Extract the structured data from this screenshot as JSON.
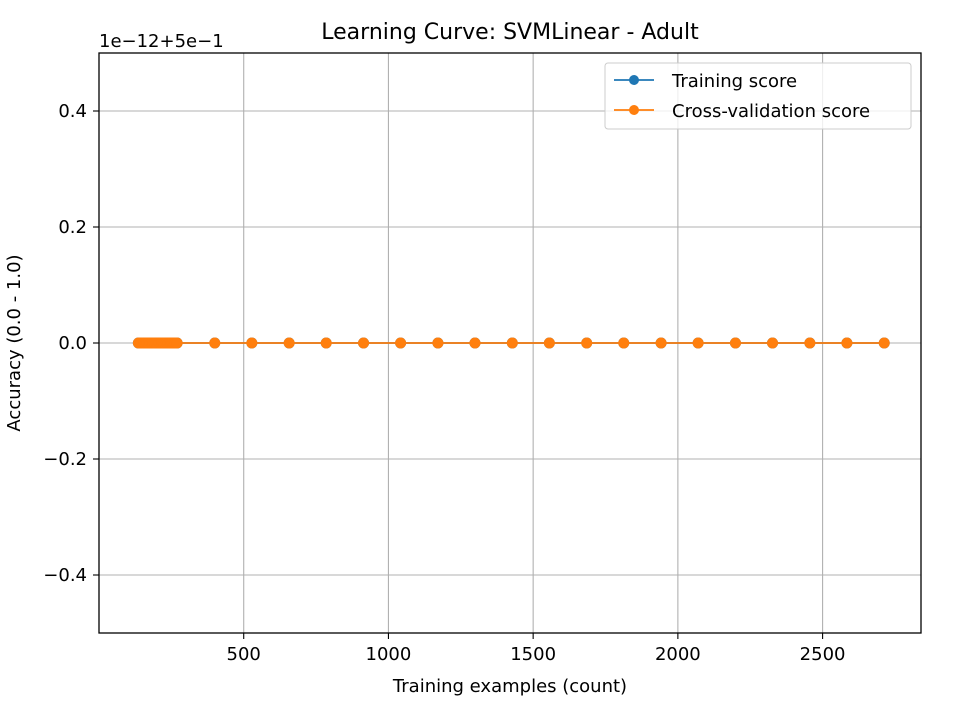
{
  "chart_data": {
    "type": "line",
    "title": "Learning Curve: SVMLinear - Adult",
    "xlabel": "Training examples (count)",
    "ylabel": "Accuracy (0.0 - 1.0)",
    "y_offset_text": "1e−12+5e−1",
    "xlim": [
      0,
      2840
    ],
    "ylim": [
      -0.5,
      0.5
    ],
    "x_ticks": [
      500,
      1000,
      1500,
      2000,
      2500
    ],
    "x_tick_labels": [
      "500",
      "1000",
      "1500",
      "2000",
      "2500"
    ],
    "y_ticks": [
      -0.4,
      -0.2,
      0.0,
      0.2,
      0.4
    ],
    "y_tick_labels": [
      "−0.4",
      "−0.2",
      "0.0",
      "0.2",
      "0.4"
    ],
    "grid": true,
    "legend_position": "top-right",
    "x": [
      136,
      141,
      146,
      151,
      157,
      162,
      167,
      172,
      177,
      182,
      187,
      192,
      198,
      203,
      208,
      213,
      218,
      223,
      228,
      234,
      239,
      244,
      249,
      254,
      259,
      264,
      270,
      400,
      528,
      657,
      785,
      914,
      1042,
      1171,
      1299,
      1428,
      1556,
      1685,
      1813,
      1942,
      2070,
      2199,
      2327,
      2456,
      2584,
      2713
    ],
    "series": [
      {
        "name": "Training score",
        "color": "#1f77b4",
        "values": [
          0,
          0,
          0,
          0,
          0,
          0,
          0,
          0,
          0,
          0,
          0,
          0,
          0,
          0,
          0,
          0,
          0,
          0,
          0,
          0,
          0,
          0,
          0,
          0,
          0,
          0,
          0,
          0,
          0,
          0,
          0,
          0,
          0,
          0,
          0,
          0,
          0,
          0,
          0,
          0,
          0,
          0,
          0,
          0,
          0,
          0
        ]
      },
      {
        "name": "Cross-validation score",
        "color": "#ff7f0e",
        "values": [
          0,
          0,
          0,
          0,
          0,
          0,
          0,
          0,
          0,
          0,
          0,
          0,
          0,
          0,
          0,
          0,
          0,
          0,
          0,
          0,
          0,
          0,
          0,
          0,
          0,
          0,
          0,
          0,
          0,
          0,
          0,
          0,
          0,
          0,
          0,
          0,
          0,
          0,
          0,
          0,
          0,
          0,
          0,
          0,
          0,
          0
        ]
      }
    ]
  }
}
